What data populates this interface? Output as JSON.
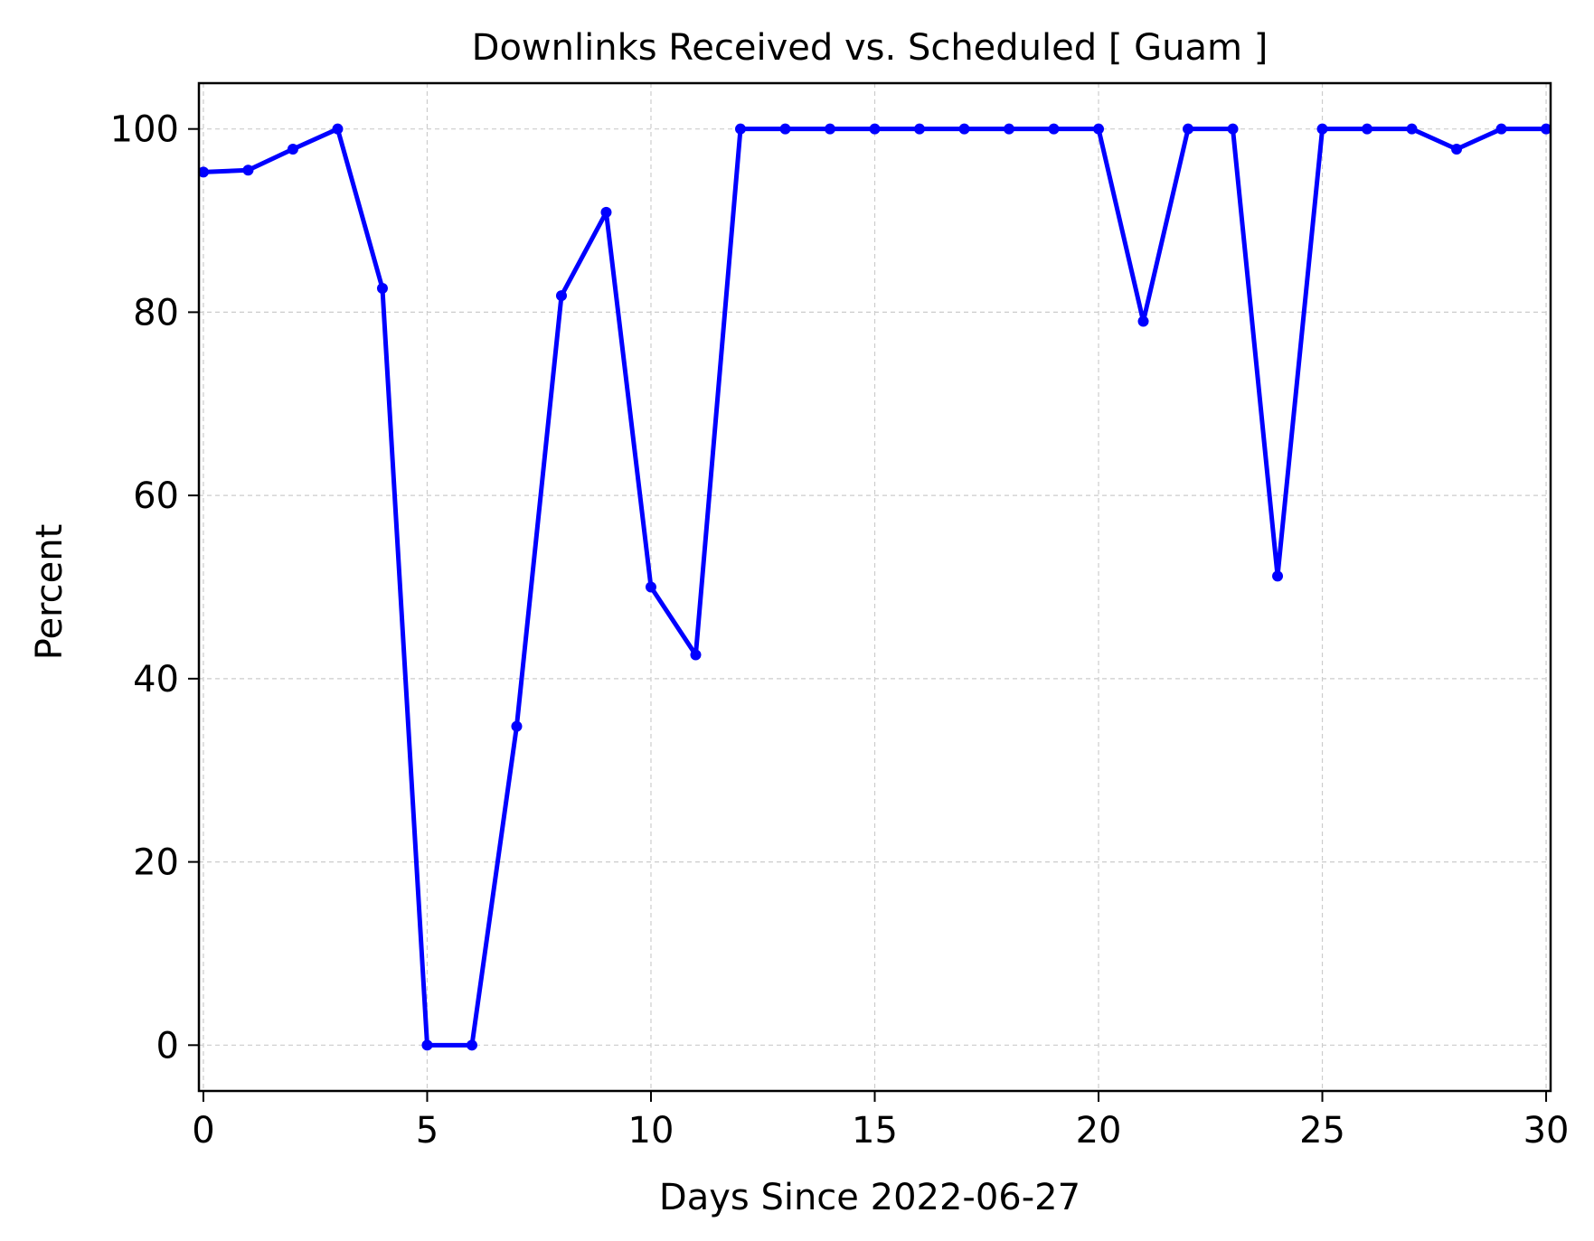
{
  "chart_data": {
    "type": "line",
    "title": "Downlinks Received vs. Scheduled [ Guam ]",
    "xlabel": "Days Since 2022-06-27",
    "ylabel": "Percent",
    "xlim": [
      -0.1,
      30.1
    ],
    "ylim": [
      -5,
      105
    ],
    "xticks": [
      0,
      5,
      10,
      15,
      20,
      25,
      30
    ],
    "yticks": [
      0,
      20,
      40,
      60,
      80,
      100
    ],
    "grid": true,
    "series_color": "#0000ff",
    "grid_color": "#cccccc",
    "series": [
      {
        "x": [
          0,
          1,
          2,
          3,
          4,
          5,
          6,
          7,
          8,
          9,
          10,
          11,
          12,
          13,
          14,
          15,
          16,
          17,
          18,
          19,
          20,
          21,
          22,
          23,
          24,
          25,
          26,
          27,
          28,
          29,
          30
        ],
        "y": [
          95.3,
          95.5,
          97.8,
          100,
          82.6,
          0,
          0,
          34.8,
          81.8,
          90.9,
          50,
          42.6,
          100,
          100,
          100,
          100,
          100,
          100,
          100,
          100,
          100,
          79,
          100,
          100,
          51.2,
          100,
          100,
          100,
          97.8,
          100,
          100
        ]
      }
    ]
  }
}
